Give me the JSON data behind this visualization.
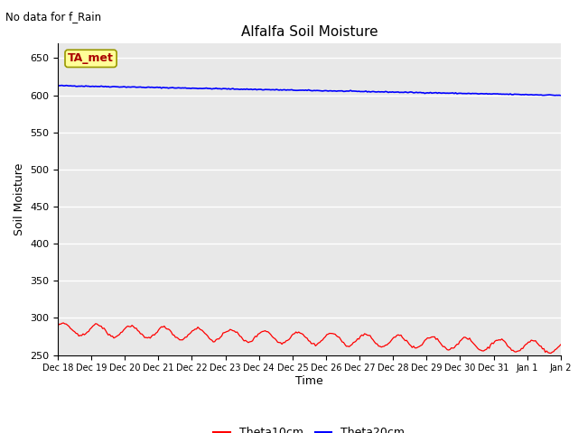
{
  "title": "Alfalfa Soil Moisture",
  "no_data_label": "No data for f_Rain",
  "ylabel": "Soil Moisture",
  "xlabel": "Time",
  "ylim": [
    250,
    670
  ],
  "yticks": [
    250,
    300,
    350,
    400,
    450,
    500,
    550,
    600,
    650
  ],
  "bg_color": "#e8e8e8",
  "fig_color": "#ffffff",
  "grid_color": "#ffffff",
  "legend_label1": "Theta10cm",
  "legend_label2": "Theta20cm",
  "line1_color": "#ff0000",
  "line2_color": "#0000ff",
  "station_label": "TA_met",
  "station_box_facecolor": "#ffff99",
  "station_box_edgecolor": "#999900",
  "station_text_color": "#aa0000",
  "n_points": 360,
  "x_tick_labels": [
    "Dec 18",
    "Dec 19",
    "Dec 20",
    "Dec 21",
    "Dec 22",
    "Dec 23",
    "Dec 24",
    "Dec 25",
    "Dec 26",
    "Dec 27",
    "Dec 28",
    "Dec 29",
    "Dec 30",
    "Dec 31",
    "Jan 1",
    "Jan 2"
  ]
}
